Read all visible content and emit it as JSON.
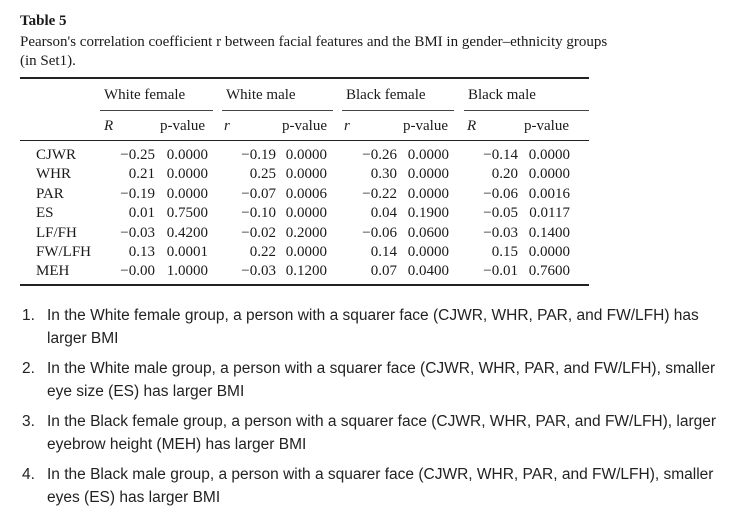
{
  "table": {
    "label": "Table 5",
    "caption": "Pearson's correlation coefficient r between facial features and the BMI in gender–ethnicity groups (in Set1).",
    "groups": [
      "White female",
      "White male",
      "Black female",
      "Black male"
    ],
    "subheaders": [
      "R",
      "p-value",
      "r",
      "p-value",
      "r",
      "p-value",
      "R",
      "p-value"
    ],
    "rows": [
      {
        "feature": "CJWR",
        "values": [
          "−0.25",
          "0.0000",
          "−0.19",
          "0.0000",
          "−0.26",
          "0.0000",
          "−0.14",
          "0.0000"
        ]
      },
      {
        "feature": "WHR",
        "values": [
          "0.21",
          "0.0000",
          "0.25",
          "0.0000",
          "0.30",
          "0.0000",
          "0.20",
          "0.0000"
        ]
      },
      {
        "feature": "PAR",
        "values": [
          "−0.19",
          "0.0000",
          "−0.07",
          "0.0006",
          "−0.22",
          "0.0000",
          "−0.06",
          "0.0016"
        ]
      },
      {
        "feature": "ES",
        "values": [
          "0.01",
          "0.7500",
          "−0.10",
          "0.0000",
          "0.04",
          "0.1900",
          "−0.05",
          "0.0117"
        ]
      },
      {
        "feature": "LF/FH",
        "values": [
          "−0.03",
          "0.4200",
          "−0.02",
          "0.2000",
          "−0.06",
          "0.0600",
          "−0.03",
          "0.1400"
        ]
      },
      {
        "feature": "FW/LFH",
        "values": [
          "0.13",
          "0.0001",
          "0.22",
          "0.0000",
          "0.14",
          "0.0000",
          "0.15",
          "0.0000"
        ]
      },
      {
        "feature": "MEH",
        "values": [
          "−0.00",
          "1.0000",
          "−0.03",
          "0.1200",
          "0.07",
          "0.0400",
          "−0.01",
          "0.7600"
        ]
      }
    ]
  },
  "notes": [
    {
      "num": "1.",
      "text": "In the White female group, a person with a squarer face (CJWR, WHR, PAR, and FW/LFH) has larger BMI"
    },
    {
      "num": "2.",
      "text": "In the White male group, a person with a squarer face (CJWR, WHR, PAR, and FW/LFH), smaller eye size (ES) has larger BMI"
    },
    {
      "num": "3.",
      "text": "In the Black female group, a person with a squarer face (CJWR, WHR, PAR, and FW/LFH), larger eyebrow height (MEH) has larger BMI"
    },
    {
      "num": "4.",
      "text": "In the Black male group, a person with a squarer face (CJWR, WHR, PAR, and FW/LFH), smaller eyes (ES) has larger BMI"
    }
  ]
}
